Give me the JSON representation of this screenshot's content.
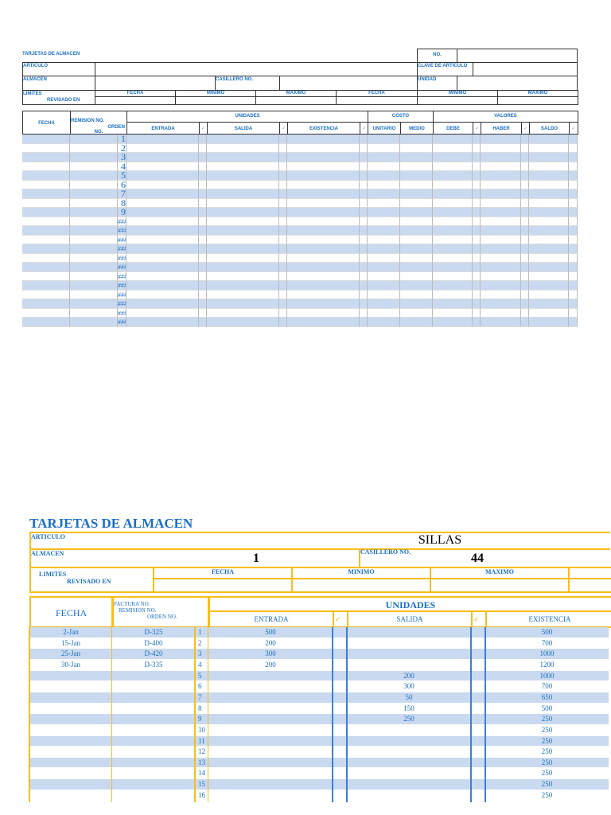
{
  "top": {
    "title": "TARJETAS DE ALMACEN",
    "no_label": "NO.",
    "articulo_label": "ARTICULO",
    "clave_label": "CLAVE DE ARTICULO",
    "almacen_label": "ALMACEN",
    "casillero_label": "CASILLERO NO.",
    "unidad_label": "UNIDAD",
    "limites_label": "LIMITES",
    "revisado_label": "REVISADO  EN",
    "limit_cols": [
      "FECHA",
      "MINIMO",
      "MAXIMO",
      "FECHA",
      "MINIMO",
      "MAXIMO"
    ],
    "grid": {
      "fecha": "FECHA",
      "remision": "REMISION NO.",
      "orden": "ORDEN",
      "no": "NO.",
      "unidades": "UNIDADES",
      "costo": "COSTO",
      "valores": "VALORES",
      "sub": [
        "ENTRADA",
        "✓",
        "SALIDA",
        "✓",
        "EXISTENCIA",
        "✓",
        "UNITARIO",
        "MEDIO",
        "DEBE",
        "✓",
        "HABER",
        "✓",
        "SALDO",
        "✓"
      ],
      "row_numbers": [
        "1",
        "2",
        "3",
        "4",
        "5",
        "6",
        "7",
        "8",
        "9",
        "###",
        "###",
        "###",
        "###",
        "###",
        "###",
        "###",
        "###",
        "###",
        "###",
        "###",
        "###"
      ]
    }
  },
  "bottom": {
    "title": "TARJETAS DE ALMACEN",
    "articulo_label": "ARTICULO",
    "articulo_value": "SILLAS",
    "almacen_label": "ALMACEN",
    "almacen_value": "1",
    "casillero_label": "CASILLERO NO.",
    "casillero_value": "44",
    "limites_label": "LIMITES",
    "revisado_label": "REVISADO  EN",
    "limit_cols": [
      "FECHA",
      "MINIMO",
      "MAXIMO"
    ],
    "grid": {
      "fecha": "FECHA",
      "factura": "FACTURA NO.",
      "remision": "REMISION NO.",
      "orden": "ORDEN NO.",
      "unidades": "UNIDADES",
      "entrada": "ENTRADA",
      "check": "✓",
      "salida": "SALIDA",
      "existencia": "EXISTENCIA",
      "rows": [
        {
          "fecha": "2-Jan",
          "doc": "D-325",
          "n": "1",
          "entrada": "500",
          "salida": "",
          "existencia": "500"
        },
        {
          "fecha": "15-Jan",
          "doc": "D-400",
          "n": "2",
          "entrada": "200",
          "salida": "",
          "existencia": "700"
        },
        {
          "fecha": "25-Jan",
          "doc": "D-420",
          "n": "3",
          "entrada": "300",
          "salida": "",
          "existencia": "1000"
        },
        {
          "fecha": "30-Jan",
          "doc": "D-335",
          "n": "4",
          "entrada": "200",
          "salida": "",
          "existencia": "1200"
        },
        {
          "fecha": "",
          "doc": "",
          "n": "5",
          "entrada": "",
          "salida": "200",
          "existencia": "1000"
        },
        {
          "fecha": "",
          "doc": "",
          "n": "6",
          "entrada": "",
          "salida": "300",
          "existencia": "700"
        },
        {
          "fecha": "",
          "doc": "",
          "n": "7",
          "entrada": "",
          "salida": "50",
          "existencia": "650"
        },
        {
          "fecha": "",
          "doc": "",
          "n": "8",
          "entrada": "",
          "salida": "150",
          "existencia": "500"
        },
        {
          "fecha": "",
          "doc": "",
          "n": "9",
          "entrada": "",
          "salida": "250",
          "existencia": "250"
        },
        {
          "fecha": "",
          "doc": "",
          "n": "10",
          "entrada": "",
          "salida": "",
          "existencia": "250"
        },
        {
          "fecha": "",
          "doc": "",
          "n": "11",
          "entrada": "",
          "salida": "",
          "existencia": "250"
        },
        {
          "fecha": "",
          "doc": "",
          "n": "12",
          "entrada": "",
          "salida": "",
          "existencia": "250"
        },
        {
          "fecha": "",
          "doc": "",
          "n": "13",
          "entrada": "",
          "salida": "",
          "existencia": "250"
        },
        {
          "fecha": "",
          "doc": "",
          "n": "14",
          "entrada": "",
          "salida": "",
          "existencia": "250"
        },
        {
          "fecha": "",
          "doc": "",
          "n": "15",
          "entrada": "",
          "salida": "",
          "existencia": "250"
        },
        {
          "fecha": "",
          "doc": "",
          "n": "16",
          "entrada": "",
          "salida": "",
          "existencia": "250"
        }
      ]
    }
  }
}
